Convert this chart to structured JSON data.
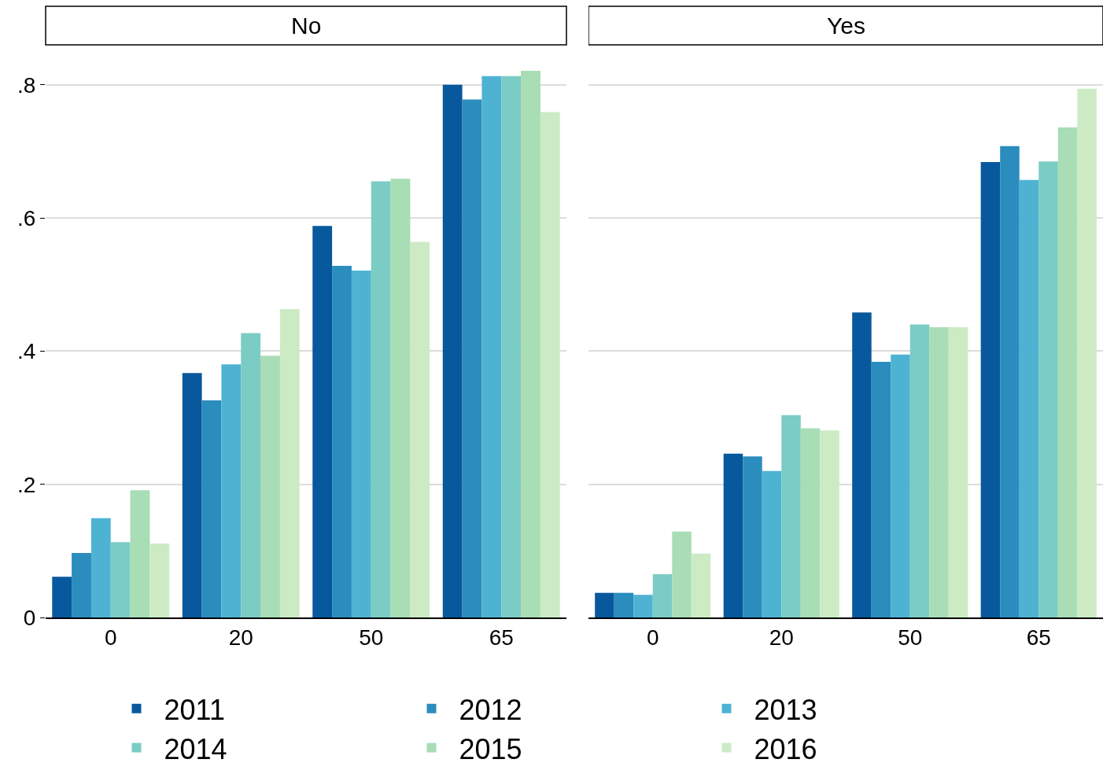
{
  "chart_data": [
    {
      "type": "bar",
      "title": "No",
      "categories": [
        "0",
        "20",
        "50",
        "65"
      ],
      "ylim": [
        0,
        0.86
      ],
      "yticks": [
        {
          "value": 0,
          "label": "0"
        },
        {
          "value": 0.2,
          "label": ".2"
        },
        {
          "value": 0.4,
          "label": ".4"
        },
        {
          "value": 0.6,
          "label": ".6"
        },
        {
          "value": 0.8,
          "label": ".8"
        }
      ],
      "grid": "y",
      "legend": "bottom",
      "series": [
        {
          "name": "2011",
          "color": "#08589e",
          "values": [
            0.061,
            0.367,
            0.588,
            0.8
          ]
        },
        {
          "name": "2012",
          "color": "#2b8cbe",
          "values": [
            0.097,
            0.326,
            0.528,
            0.778
          ]
        },
        {
          "name": "2013",
          "color": "#4eb3d3",
          "values": [
            0.149,
            0.38,
            0.521,
            0.813
          ]
        },
        {
          "name": "2014",
          "color": "#7bccc4",
          "values": [
            0.113,
            0.427,
            0.655,
            0.813
          ]
        },
        {
          "name": "2015",
          "color": "#a8ddb5",
          "values": [
            0.191,
            0.393,
            0.659,
            0.821
          ]
        },
        {
          "name": "2016",
          "color": "#ccebc5",
          "values": [
            0.111,
            0.463,
            0.564,
            0.759
          ]
        }
      ]
    },
    {
      "type": "bar",
      "title": "Yes",
      "categories": [
        "0",
        "20",
        "50",
        "65"
      ],
      "ylim": [
        0,
        0.86
      ],
      "yticks": [
        {
          "value": 0,
          "label": null
        },
        {
          "value": 0.2,
          "label": null
        },
        {
          "value": 0.4,
          "label": null
        },
        {
          "value": 0.6,
          "label": null
        },
        {
          "value": 0.8,
          "label": null
        }
      ],
      "grid": "y",
      "tick_labels": "x",
      "series": [
        {
          "name": "2011",
          "color": "#08589e",
          "values": [
            0.037,
            0.246,
            0.458,
            0.684
          ]
        },
        {
          "name": "2012",
          "color": "#2b8cbe",
          "values": [
            0.037,
            0.242,
            0.384,
            0.708
          ]
        },
        {
          "name": "2013",
          "color": "#4eb3d3",
          "values": [
            0.034,
            0.22,
            0.395,
            0.657
          ]
        },
        {
          "name": "2014",
          "color": "#7bccc4",
          "values": [
            0.065,
            0.304,
            0.44,
            0.685
          ]
        },
        {
          "name": "2015",
          "color": "#a8ddb5",
          "values": [
            0.129,
            0.284,
            0.436,
            0.736
          ]
        },
        {
          "name": "2016",
          "color": "#ccebc5",
          "values": [
            0.096,
            0.281,
            0.436,
            0.794
          ]
        }
      ]
    }
  ]
}
